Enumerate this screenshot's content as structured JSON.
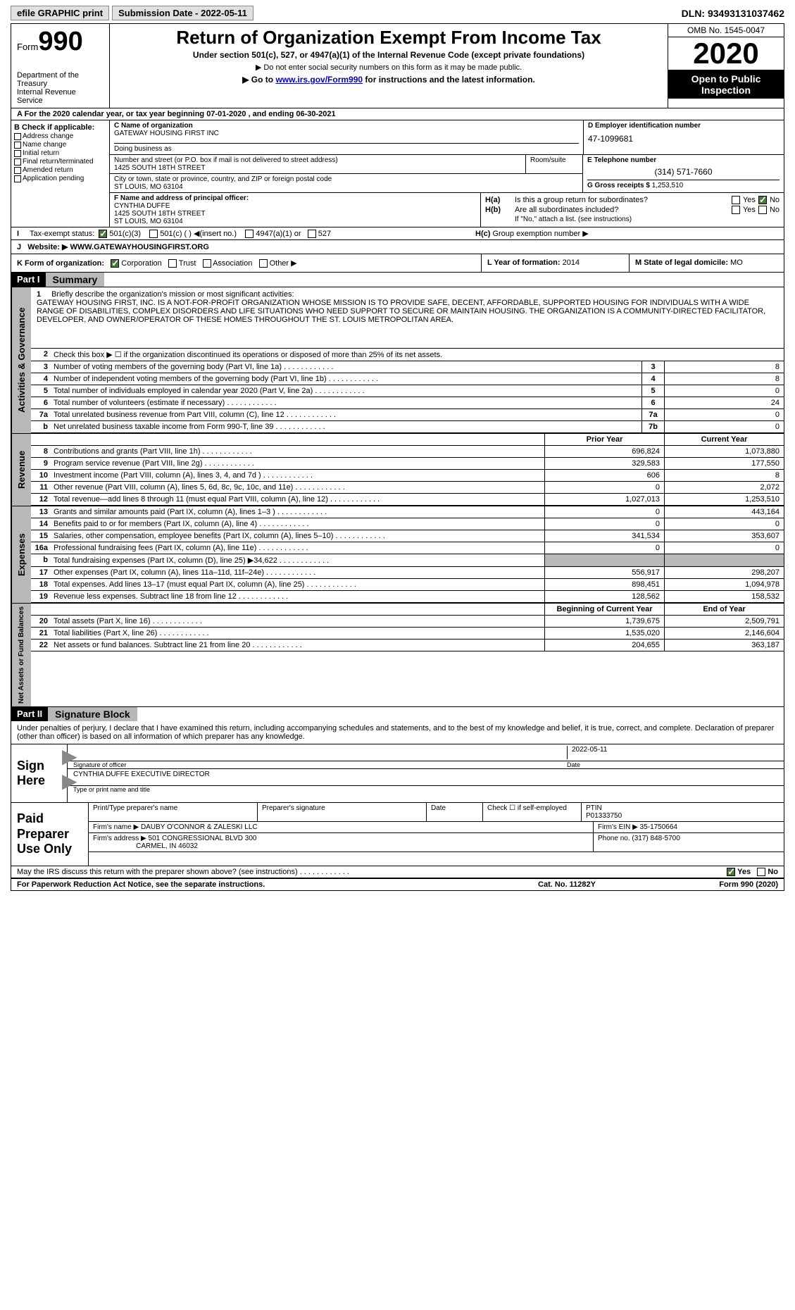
{
  "topbar": {
    "efile": "efile GRAPHIC print",
    "submission": "Submission Date - 2022-05-11",
    "dln": "DLN: 93493131037462"
  },
  "header": {
    "form_prefix": "Form",
    "form_num": "990",
    "dept": "Department of the Treasury\nInternal Revenue Service",
    "title": "Return of Organization Exempt From Income Tax",
    "subtitle": "Under section 501(c), 527, or 4947(a)(1) of the Internal Revenue Code (except private foundations)",
    "note1": "▶ Do not enter social security numbers on this form as it may be made public.",
    "note2": "▶ Go to www.irs.gov/Form990 for instructions and the latest information.",
    "link": "www.irs.gov/Form990",
    "omb": "OMB No. 1545-0047",
    "year": "2020",
    "open_to": "Open to Public Inspection"
  },
  "row_a": "A  For the 2020 calendar year, or tax year beginning 07-01-2020   , and ending 06-30-2021",
  "section_b": {
    "header": "B Check if applicable:",
    "items": [
      "Address change",
      "Name change",
      "Initial return",
      "Final return/terminated",
      "Amended return",
      "Application pending"
    ]
  },
  "section_c": {
    "label": "C Name of organization",
    "name": "GATEWAY HOUSING FIRST INC",
    "dba_label": "Doing business as",
    "street_label": "Number and street (or P.O. box if mail is not delivered to street address)",
    "street": "1425 SOUTH 18TH STREET",
    "room_label": "Room/suite",
    "city_label": "City or town, state or province, country, and ZIP or foreign postal code",
    "city": "ST LOUIS, MO  63104"
  },
  "section_d": {
    "label": "D Employer identification number",
    "value": "47-1099681"
  },
  "section_e": {
    "label": "E Telephone number",
    "value": "(314) 571-7660"
  },
  "section_g": {
    "label": "G Gross receipts $",
    "value": "1,253,510"
  },
  "section_f": {
    "label": "F Name and address of principal officer:",
    "name": "CYNTHIA DUFFE",
    "street": "1425 SOUTH 18TH STREET",
    "city": "ST LOUIS, MO  63104"
  },
  "section_h": {
    "ha": "Is this a group return for subordinates?",
    "hb": "Are all subordinates included?",
    "hb_note": "If \"No,\" attach a list. (see instructions)",
    "hc": "Group exemption number ▶"
  },
  "row_i": {
    "label": "I",
    "text": "Tax-exempt status:",
    "opts": [
      "501(c)(3)",
      "501(c) (  ) ◀(insert no.)",
      "4947(a)(1) or",
      "527"
    ]
  },
  "row_j": {
    "label": "J",
    "text": "Website: ▶",
    "value": "WWW.GATEWAYHOUSINGFIRST.ORG"
  },
  "row_k": {
    "label": "K Form of organization:",
    "opts": [
      "Corporation",
      "Trust",
      "Association",
      "Other ▶"
    ],
    "l_label": "L Year of formation:",
    "l_val": "2014",
    "m_label": "M State of legal domicile:",
    "m_val": "MO"
  },
  "part1": {
    "header": "Part I",
    "title": "Summary",
    "side1": "Activities & Governance",
    "mission_num": "1",
    "mission_label": "Briefly describe the organization's mission or most significant activities:",
    "mission": "GATEWAY HOUSING FIRST, INC. IS A NOT-FOR-PROFIT ORGANIZATION WHOSE MISSION IS TO PROVIDE SAFE, DECENT, AFFORDABLE, SUPPORTED HOUSING FOR INDIVIDUALS WITH A WIDE RANGE OF DISABILITIES, COMPLEX DISORDERS AND LIFE SITUATIONS WHO NEED SUPPORT TO SECURE OR MAINTAIN HOUSING. THE ORGANIZATION IS A COMMUNITY-DIRECTED FACILITATOR, DEVELOPER, AND OWNER/OPERATOR OF THESE HOMES THROUGHOUT THE ST. LOUIS METROPOLITAN AREA.",
    "line2": "Check this box ▶ ☐  if the organization discontinued its operations or disposed of more than 25% of its net assets.",
    "lines_gov": [
      {
        "num": "3",
        "txt": "Number of voting members of the governing body (Part VI, line 1a)",
        "box": "3",
        "val": "8"
      },
      {
        "num": "4",
        "txt": "Number of independent voting members of the governing body (Part VI, line 1b)",
        "box": "4",
        "val": "8"
      },
      {
        "num": "5",
        "txt": "Total number of individuals employed in calendar year 2020 (Part V, line 2a)",
        "box": "5",
        "val": "0"
      },
      {
        "num": "6",
        "txt": "Total number of volunteers (estimate if necessary)",
        "box": "6",
        "val": "24"
      },
      {
        "num": "7a",
        "txt": "Total unrelated business revenue from Part VIII, column (C), line 12",
        "box": "7a",
        "val": "0"
      },
      {
        "num": "b",
        "txt": "Net unrelated business taxable income from Form 990-T, line 39",
        "box": "7b",
        "val": "0"
      }
    ],
    "side2": "Revenue",
    "col_hdr1": "Prior Year",
    "col_hdr2": "Current Year",
    "lines_rev": [
      {
        "num": "8",
        "txt": "Contributions and grants (Part VIII, line 1h)",
        "v1": "696,824",
        "v2": "1,073,880"
      },
      {
        "num": "9",
        "txt": "Program service revenue (Part VIII, line 2g)",
        "v1": "329,583",
        "v2": "177,550"
      },
      {
        "num": "10",
        "txt": "Investment income (Part VIII, column (A), lines 3, 4, and 7d )",
        "v1": "606",
        "v2": "8"
      },
      {
        "num": "11",
        "txt": "Other revenue (Part VIII, column (A), lines 5, 6d, 8c, 9c, 10c, and 11e)",
        "v1": "0",
        "v2": "2,072"
      },
      {
        "num": "12",
        "txt": "Total revenue—add lines 8 through 11 (must equal Part VIII, column (A), line 12)",
        "v1": "1,027,013",
        "v2": "1,253,510"
      }
    ],
    "side3": "Expenses",
    "lines_exp": [
      {
        "num": "13",
        "txt": "Grants and similar amounts paid (Part IX, column (A), lines 1–3 )",
        "v1": "0",
        "v2": "443,164"
      },
      {
        "num": "14",
        "txt": "Benefits paid to or for members (Part IX, column (A), line 4)",
        "v1": "0",
        "v2": "0"
      },
      {
        "num": "15",
        "txt": "Salaries, other compensation, employee benefits (Part IX, column (A), lines 5–10)",
        "v1": "341,534",
        "v2": "353,607"
      },
      {
        "num": "16a",
        "txt": "Professional fundraising fees (Part IX, column (A), line 11e)",
        "v1": "0",
        "v2": "0"
      },
      {
        "num": "b",
        "txt": "Total fundraising expenses (Part IX, column (D), line 25) ▶34,622",
        "v1": "",
        "v2": "",
        "grey": true
      },
      {
        "num": "17",
        "txt": "Other expenses (Part IX, column (A), lines 11a–11d, 11f–24e)",
        "v1": "556,917",
        "v2": "298,207"
      },
      {
        "num": "18",
        "txt": "Total expenses. Add lines 13–17 (must equal Part IX, column (A), line 25)",
        "v1": "898,451",
        "v2": "1,094,978"
      },
      {
        "num": "19",
        "txt": "Revenue less expenses. Subtract line 18 from line 12",
        "v1": "128,562",
        "v2": "158,532"
      }
    ],
    "side4": "Net Assets or Fund Balances",
    "col_hdr3": "Beginning of Current Year",
    "col_hdr4": "End of Year",
    "lines_net": [
      {
        "num": "20",
        "txt": "Total assets (Part X, line 16)",
        "v1": "1,739,675",
        "v2": "2,509,791"
      },
      {
        "num": "21",
        "txt": "Total liabilities (Part X, line 26)",
        "v1": "1,535,020",
        "v2": "2,146,604"
      },
      {
        "num": "22",
        "txt": "Net assets or fund balances. Subtract line 21 from line 20",
        "v1": "204,655",
        "v2": "363,187"
      }
    ]
  },
  "part2": {
    "header": "Part II",
    "title": "Signature Block",
    "decl": "Under penalties of perjury, I declare that I have examined this return, including accompanying schedules and statements, and to the best of my knowledge and belief, it is true, correct, and complete. Declaration of preparer (other than officer) is based on all information of which preparer has any knowledge.",
    "sign_here": "Sign Here",
    "sig_officer": "Signature of officer",
    "sig_date": "2022-05-11",
    "date_lbl": "Date",
    "officer_name": "CYNTHIA DUFFE  EXECUTIVE DIRECTOR",
    "type_name": "Type or print name and title",
    "paid_prep": "Paid Preparer Use Only",
    "prep_name_lbl": "Print/Type preparer's name",
    "prep_sig_lbl": "Preparer's signature",
    "prep_date_lbl": "Date",
    "prep_check": "Check ☐ if self-employed",
    "ptin_lbl": "PTIN",
    "ptin": "P01333750",
    "firm_name_lbl": "Firm's name     ▶",
    "firm_name": "DAUBY O'CONNOR & ZALESKI LLC",
    "firm_ein_lbl": "Firm's EIN ▶",
    "firm_ein": "35-1750664",
    "firm_addr_lbl": "Firm's address ▶",
    "firm_addr": "501 CONGRESSIONAL BLVD 300",
    "firm_city": "CARMEL, IN  46032",
    "phone_lbl": "Phone no.",
    "phone": "(317) 848-5700",
    "discuss": "May the IRS discuss this return with the preparer shown above? (see instructions)"
  },
  "footer": {
    "l": "For Paperwork Reduction Act Notice, see the separate instructions.",
    "m": "Cat. No. 11282Y",
    "r": "Form 990 (2020)"
  },
  "yes": "Yes",
  "no": "No"
}
